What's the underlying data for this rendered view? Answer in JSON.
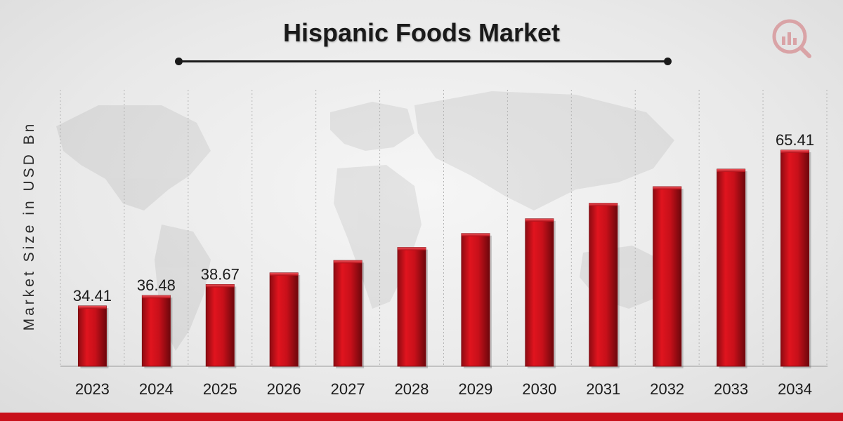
{
  "header": {
    "title": "Hispanic Foods Market",
    "logo_icon": "market-research-logo-icon"
  },
  "colors": {
    "bar": "#c8101a",
    "bar_dark": "#7d0a10",
    "text": "#1a1a1a",
    "accent_band": "#c8101a"
  },
  "chart_data": {
    "type": "bar",
    "title": "Hispanic Foods Market",
    "xlabel": "",
    "ylabel": "Market Size in USD Bn",
    "categories": [
      "2023",
      "2024",
      "2025",
      "2026",
      "2027",
      "2028",
      "2029",
      "2030",
      "2031",
      "2032",
      "2033",
      "2034"
    ],
    "values": [
      34.41,
      36.48,
      38.67,
      40.99,
      43.45,
      46.05,
      48.82,
      51.75,
      54.85,
      58.14,
      61.63,
      65.41
    ],
    "data_labels": [
      "34.41",
      "36.48",
      "38.67",
      "",
      "",
      "",
      "",
      "",
      "",
      "",
      "",
      "65.41"
    ],
    "grid": "vertical dotted",
    "legend": "none"
  }
}
